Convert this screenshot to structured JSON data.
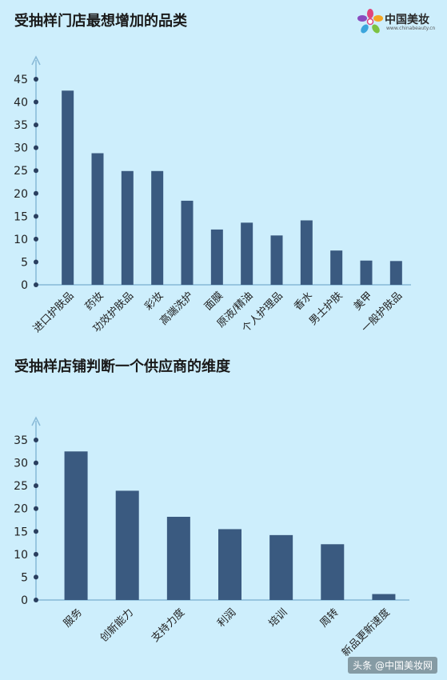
{
  "logo": {
    "text": "中国美妆",
    "subtext": "www.chinabeauty.cn"
  },
  "footer": {
    "text": "头条 @中国美妆网"
  },
  "colors": {
    "bar": "#3a5a80",
    "axis": "#87b8d6",
    "tick": "#2a3f5f",
    "background": "#cdeefc"
  },
  "chart_data": [
    {
      "type": "bar",
      "title": "受抽样门店最想增加的品类",
      "categories": [
        "进口护肤品",
        "药妆",
        "功效护肤品",
        "彩妆",
        "高端洗护",
        "面膜",
        "原液/精油",
        "个人护理品",
        "香水",
        "男士护肤",
        "美甲",
        "一般护肤品"
      ],
      "values": [
        42.5,
        28.8,
        24.9,
        24.9,
        18.4,
        12.1,
        13.6,
        10.8,
        14.1,
        7.5,
        5.3,
        5.2
      ],
      "ylim": [
        0,
        45
      ],
      "yticks": [
        "0",
        "5",
        "10",
        "15",
        "20",
        "25",
        "30",
        "35",
        "40",
        "45"
      ],
      "xlabel": "",
      "ylabel": "",
      "grid": false
    },
    {
      "type": "bar",
      "title": "受抽样店铺判断一个供应商的维度",
      "categories": [
        "服务",
        "创新能力",
        "支持力度",
        "利润",
        "培训",
        "周转",
        "新品更新速度"
      ],
      "values": [
        32.5,
        23.9,
        18.2,
        15.5,
        14.2,
        12.2,
        1.3
      ],
      "ylim": [
        0,
        35
      ],
      "yticks": [
        "0",
        "5",
        "10",
        "15",
        "20",
        "25",
        "30",
        "35"
      ],
      "xlabel": "",
      "ylabel": "",
      "grid": false
    }
  ]
}
